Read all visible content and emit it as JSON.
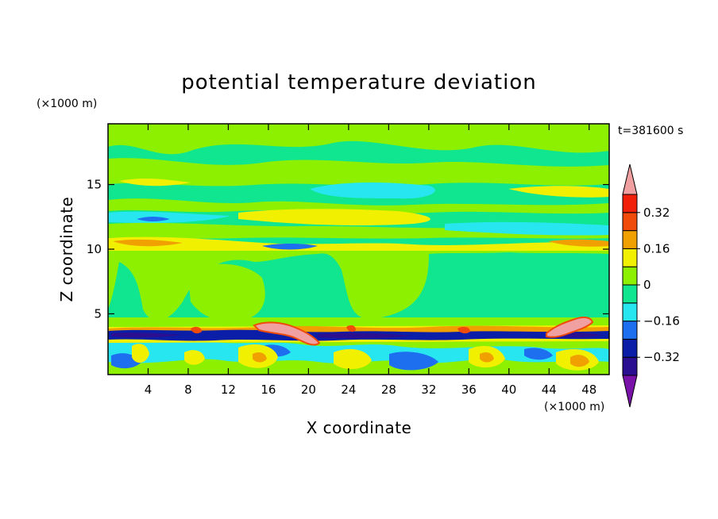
{
  "chart_data": {
    "type": "heatmap",
    "title": "potential temperature deviation",
    "xlabel": "X coordinate",
    "ylabel": "Z coordinate",
    "x_unit": "(×1000 m)",
    "y_unit": "(×1000 m)",
    "time_label": "t=381600 s",
    "xlim": [
      0,
      50
    ],
    "ylim": [
      0.3,
      19.7
    ],
    "x_ticks": [
      4,
      8,
      12,
      16,
      20,
      24,
      28,
      32,
      36,
      40,
      44,
      48
    ],
    "y_ticks": [
      5,
      10,
      15
    ],
    "colorbar": {
      "levels": [
        -0.4,
        -0.32,
        -0.24,
        -0.16,
        -0.08,
        0,
        0.08,
        0.16,
        0.24,
        0.32,
        0.4
      ],
      "labels": [
        {
          "value": -0.32,
          "text": "−0.32"
        },
        {
          "value": -0.16,
          "text": "−0.16"
        },
        {
          "value": 0,
          "text": "0"
        },
        {
          "value": 0.16,
          "text": "0.16"
        },
        {
          "value": 0.32,
          "text": "0.32"
        }
      ],
      "colors": [
        "#2a1090",
        "#0a1ea8",
        "#1e6ef0",
        "#28e6f0",
        "#10e690",
        "#8cf000",
        "#f0f000",
        "#f0a000",
        "#f04b0a",
        "#f0200a"
      ],
      "under_color": "#7812a8",
      "over_color": "#f0a0a0"
    },
    "features": [
      {
        "kind": "band",
        "z": [
          0.4,
          3.0
        ],
        "value": "mixed"
      },
      {
        "kind": "band",
        "z": [
          2.8,
          3.8
        ],
        "value": -0.3
      },
      {
        "kind": "band",
        "z": [
          3.7,
          10.0
        ],
        "value": 0.05
      },
      {
        "kind": "band",
        "z": [
          10.0,
          10.8
        ],
        "value": 0.2
      },
      {
        "kind": "band",
        "z": [
          11.5,
          13.0
        ],
        "value": 0.1
      },
      {
        "kind": "band",
        "z": [
          13.0,
          15.5
        ],
        "value": -0.1
      },
      {
        "kind": "band",
        "z": [
          15.5,
          19.7
        ],
        "value": 0.05
      }
    ]
  }
}
